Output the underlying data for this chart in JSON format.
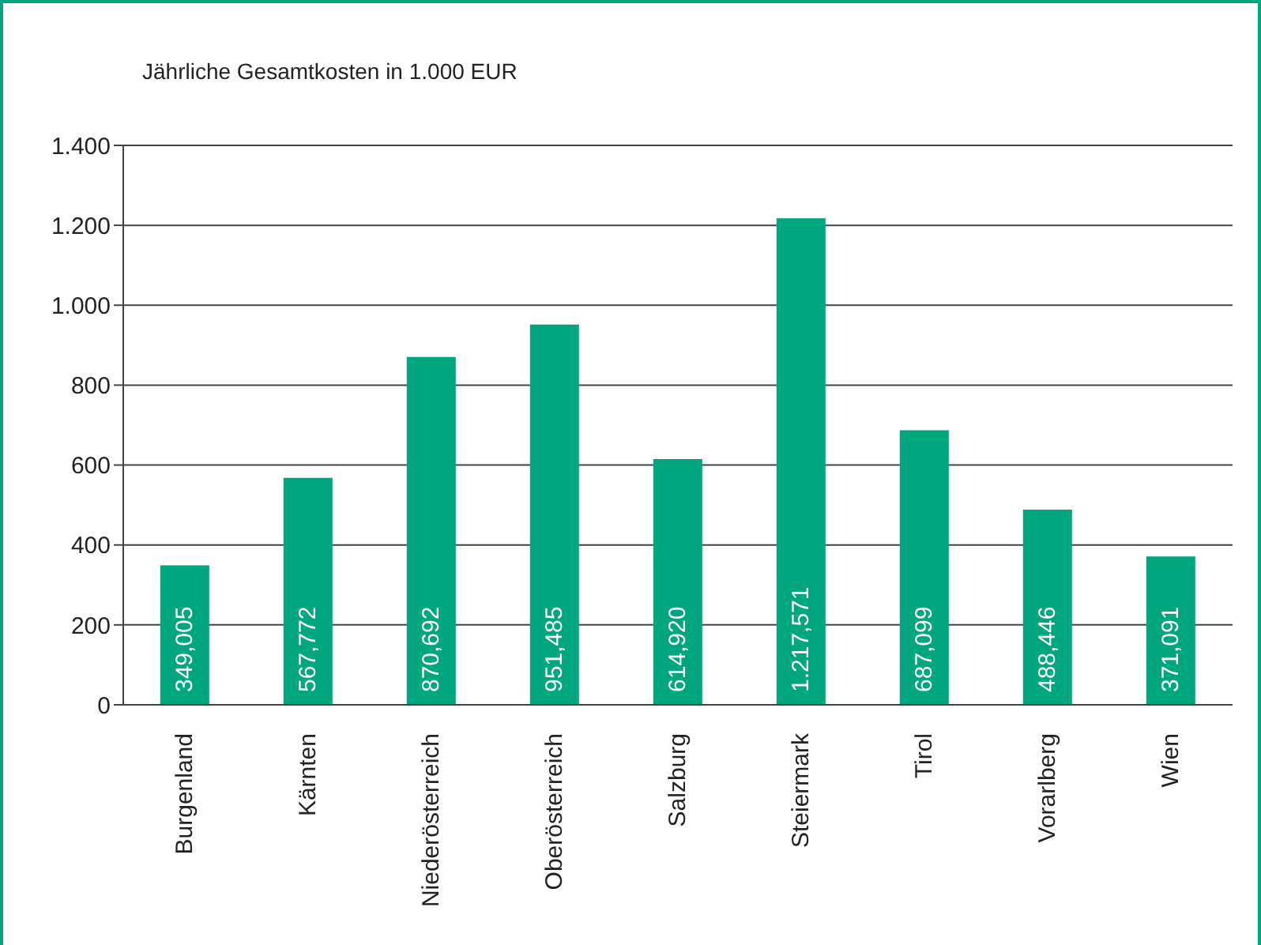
{
  "chart_data": {
    "type": "bar",
    "title": "Jährliche Gesamtkosten in 1.000 EUR",
    "categories": [
      "Burgenland",
      "Kärnten",
      "Niederösterreich",
      "Oberösterreich",
      "Salzburg",
      "Steiermark",
      "Tirol",
      "Vorarlberg",
      "Wien"
    ],
    "values": [
      349.005,
      567.772,
      870.692,
      951.485,
      614.92,
      1217.571,
      687.099,
      488.446,
      371.091
    ],
    "value_labels": [
      "349,005",
      "567,772",
      "870,692",
      "951,485",
      "614,920",
      "1.217,571",
      "687,099",
      "488,446",
      "371,091"
    ],
    "color": "#00a67e",
    "ylim": [
      0,
      1400
    ],
    "yticks": [
      0,
      200,
      400,
      600,
      800,
      {
        "value": 1000,
        "label": "1.000"
      },
      {
        "value": 1200,
        "label": "1.200"
      },
      {
        "value": 1400,
        "label": "1.400"
      }
    ],
    "grid": "y",
    "legend": false
  }
}
